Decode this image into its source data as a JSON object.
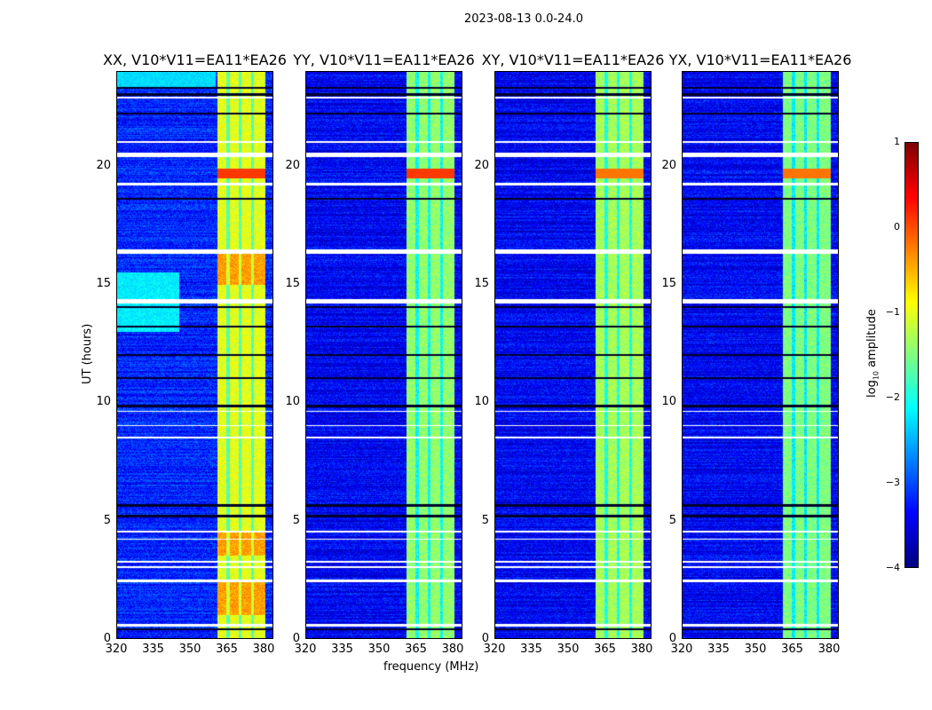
{
  "figure_title": "2023-08-13 0.0-24.0",
  "chart_data": {
    "type": "heatmap",
    "title": "2023-08-13 0.0-24.0",
    "xlabel": "frequency (MHz)",
    "ylabel": "UT (hours)",
    "xlim": [
      320,
      384
    ],
    "ylim": [
      0,
      24
    ],
    "xticks": [
      "320",
      "335",
      "350",
      "365",
      "380"
    ],
    "xtick_values": [
      320,
      335,
      350,
      365,
      380
    ],
    "yticks": [
      "0",
      "5",
      "10",
      "15",
      "20"
    ],
    "ytick_values": [
      0,
      5,
      10,
      15,
      20
    ],
    "panels": [
      {
        "title": "XX, V10*V11=EA11*EA26",
        "background": -3.2,
        "band_level": -1.0
      },
      {
        "title": "YY, V10*V11=EA11*EA26",
        "background": -3.4,
        "band_level": -1.4
      },
      {
        "title": "XY, V10*V11=EA11*EA26",
        "background": -3.4,
        "band_level": -1.3
      },
      {
        "title": "YX, V10*V11=EA11*EA26",
        "background": -3.4,
        "band_level": -1.5
      }
    ],
    "bright_band_mhz": [
      360.5,
      380
    ],
    "subband_gaps_mhz": [
      365,
      370,
      375
    ],
    "flagged_white_hours": [
      [
        0.5,
        0.62
      ],
      [
        2.4,
        2.5
      ],
      [
        3.0,
        3.06
      ],
      [
        3.22,
        3.28
      ],
      [
        4.18,
        4.24
      ],
      [
        4.5,
        4.56
      ],
      [
        8.5,
        8.56
      ],
      [
        9.0,
        9.06
      ],
      [
        9.6,
        9.66
      ],
      [
        14.2,
        14.4
      ],
      [
        16.3,
        16.5
      ],
      [
        19.2,
        19.3
      ],
      [
        20.4,
        20.6
      ],
      [
        21.0,
        21.1
      ],
      [
        22.9,
        22.98
      ]
    ],
    "flagged_dark_hours": [
      [
        0.35,
        0.45
      ],
      [
        5.15,
        5.25
      ],
      [
        5.6,
        5.7
      ],
      [
        9.8,
        9.9
      ],
      [
        11.0,
        11.06
      ],
      [
        12.0,
        12.06
      ],
      [
        13.2,
        13.26
      ],
      [
        14.0,
        14.08
      ],
      [
        18.6,
        18.66
      ],
      [
        22.2,
        22.3
      ],
      [
        23.0,
        23.1
      ],
      [
        23.3,
        23.38
      ]
    ],
    "colorbar": {
      "label": "log10 amplitude",
      "label_main": "log",
      "label_sub": "10",
      "label_tail": " amplitude",
      "range": [
        -4,
        1
      ],
      "ticks": [
        "1",
        "0",
        "−1",
        "−2",
        "−3",
        "−4"
      ],
      "tick_values": [
        1,
        0,
        -1,
        -2,
        -3,
        -4
      ],
      "colormap": "jet"
    }
  }
}
